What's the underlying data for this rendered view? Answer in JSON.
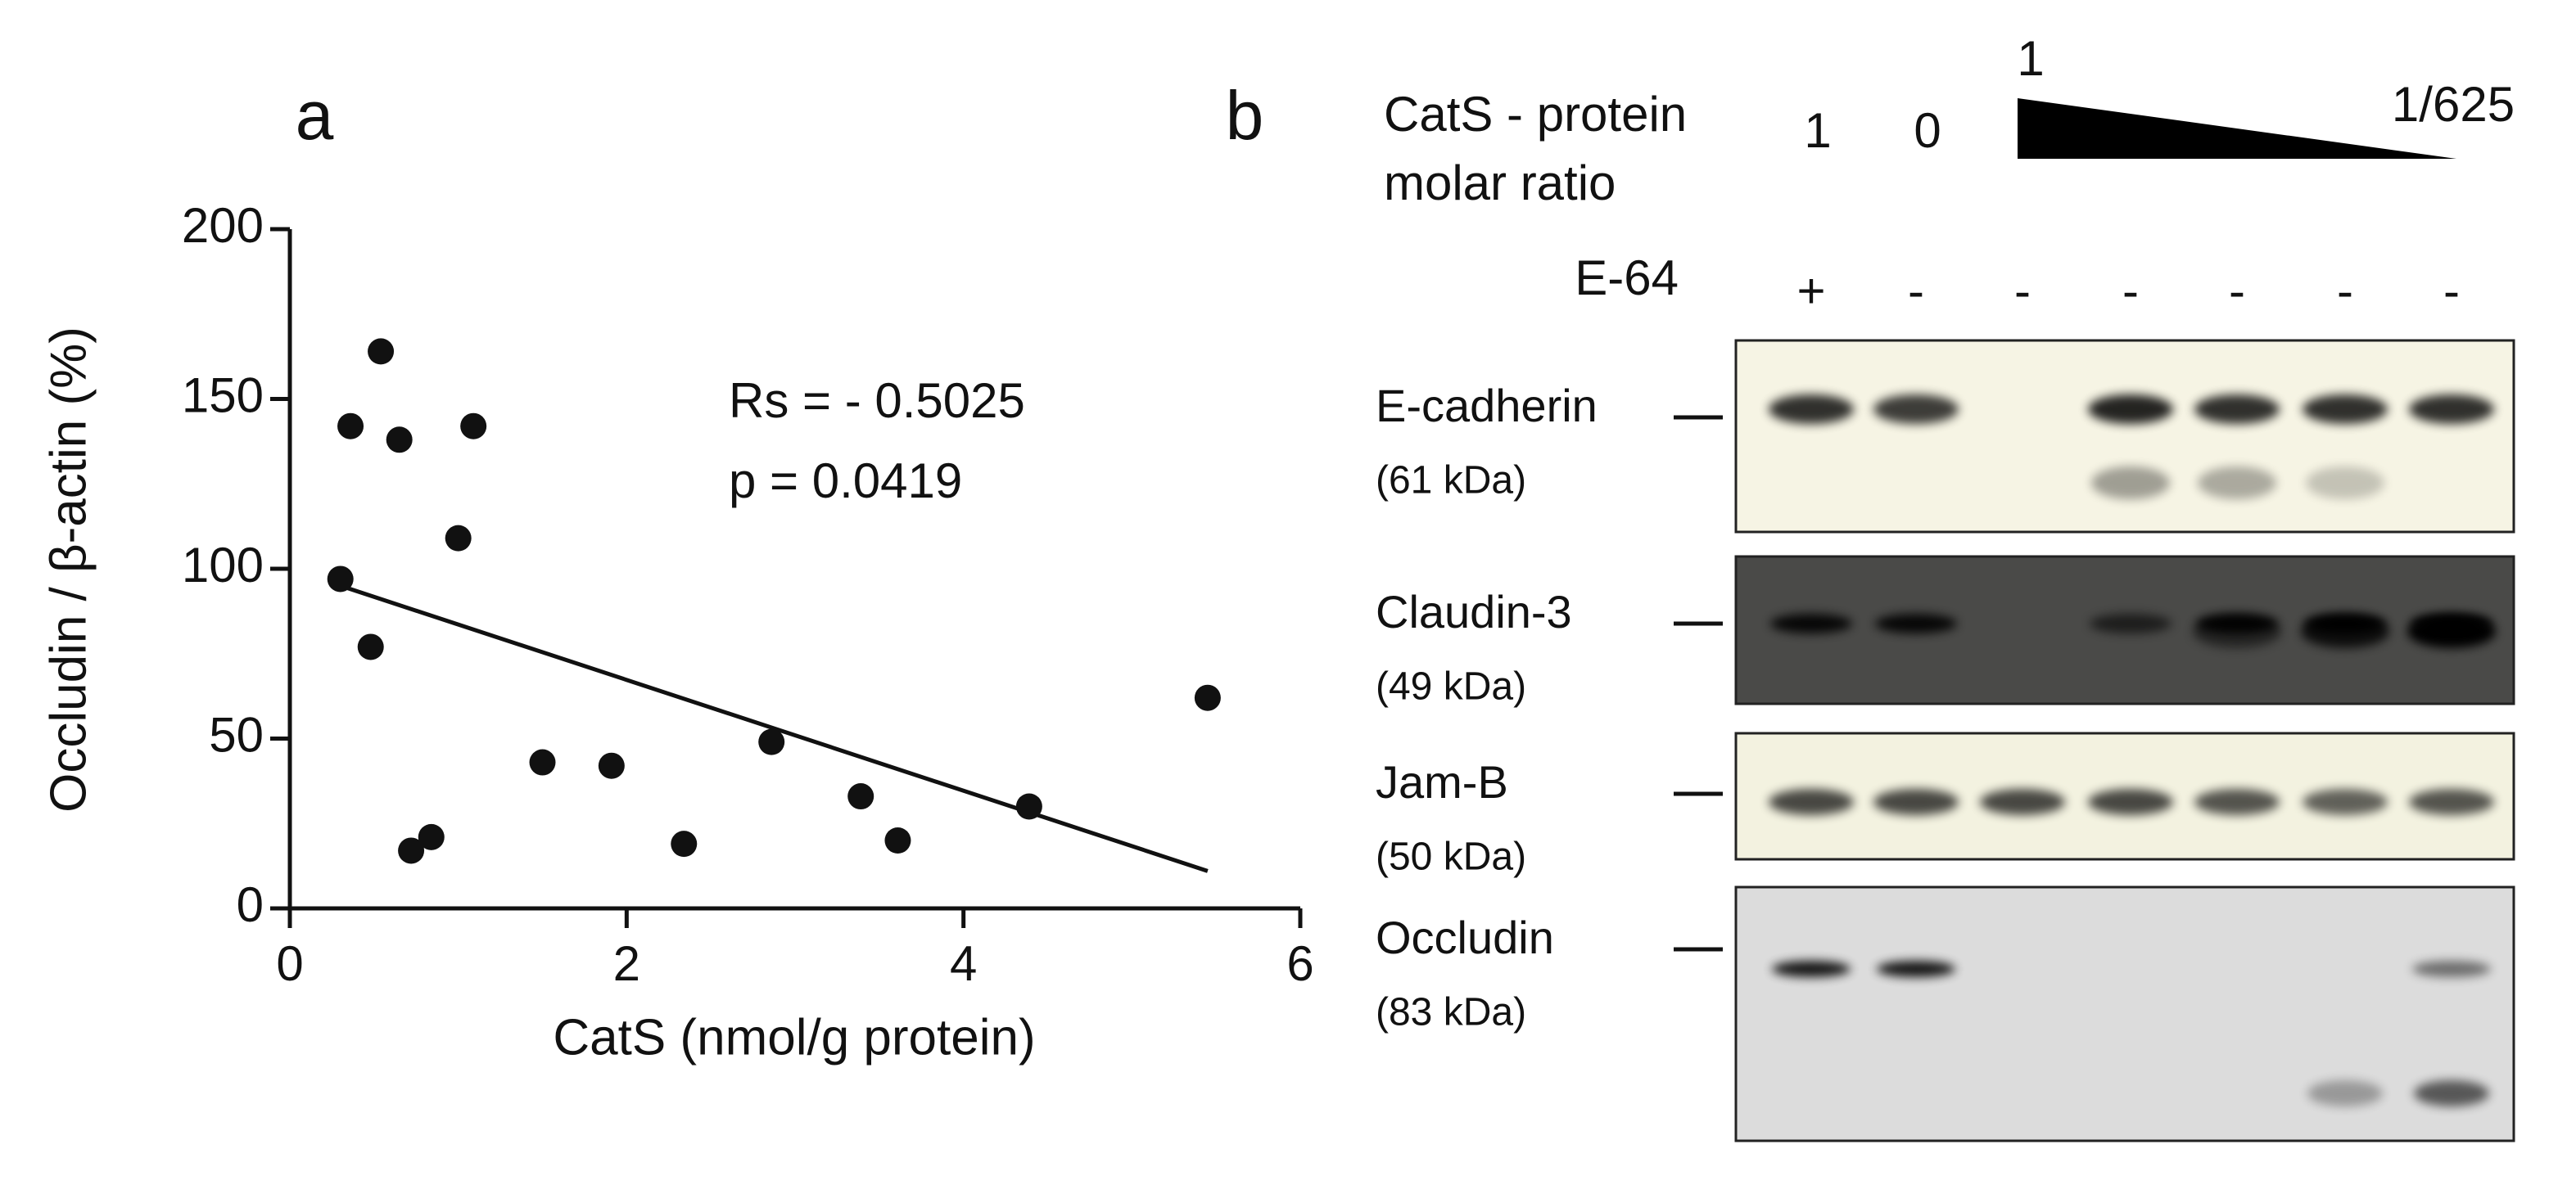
{
  "chart_data": {
    "type": "scatter",
    "panel_label": "a",
    "x_label": "CatS (nmol/g protein)",
    "y_label": "Occludin / β-actin (%)",
    "annotations": [
      "Rs = - 0.5025",
      "p = 0.0419"
    ],
    "x": [
      0.3,
      0.36,
      0.54,
      0.65,
      0.48,
      1.09,
      1.0,
      0.72,
      0.84,
      1.5,
      1.91,
      2.34,
      2.86,
      3.39,
      3.61,
      4.39,
      5.45
    ],
    "values": [
      97,
      142,
      164,
      138,
      77,
      142,
      109,
      17,
      21,
      43,
      42,
      19,
      49,
      33,
      20,
      30,
      62
    ],
    "fit": {
      "x": [
        0.3,
        5.45
      ],
      "values": [
        95,
        11
      ]
    },
    "color": "#111111",
    "xlim": [
      0,
      6
    ],
    "xticks": [
      0,
      2,
      4,
      6
    ],
    "ylim": [
      0,
      200
    ],
    "yticks": [
      0,
      50,
      100,
      150,
      200
    ]
  },
  "panel_b": {
    "label": "b",
    "ratio_label": [
      "CatS - protein",
      "molar ratio"
    ],
    "ratio_values": [
      "1",
      "0"
    ],
    "gradient_start": "1",
    "gradient_end": "1/625",
    "inhibitor": "E-64",
    "inhibitor_signs": [
      "+",
      "-",
      "-",
      "-",
      "-",
      "-",
      "-"
    ],
    "blots": [
      {
        "name": "E-cadherin",
        "size": "(61 kDa)"
      },
      {
        "name": "Claudin-3",
        "size": "(49 kDa)"
      },
      {
        "name": "Jam-B",
        "size": "(50 kDa)"
      },
      {
        "name": "Occludin",
        "size": "(83 kDa)"
      }
    ]
  }
}
